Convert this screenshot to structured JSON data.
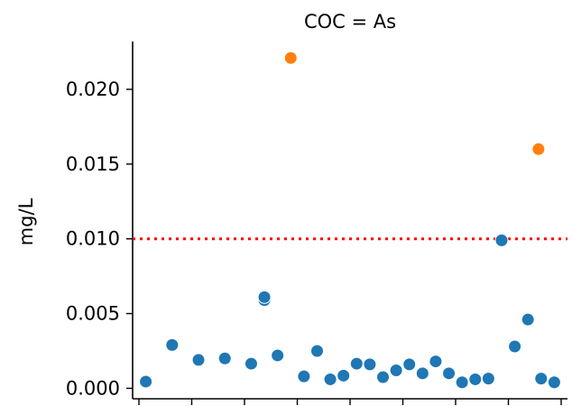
{
  "chart_data": {
    "type": "scatter",
    "title": "COC = As",
    "xlabel": "",
    "ylabel": "mg/L",
    "ylim": [
      -0.0007,
      0.0232
    ],
    "yticks": [
      "0.000",
      "0.005",
      "0.010",
      "0.015",
      "0.020"
    ],
    "ytick_values": [
      0.0,
      0.005,
      0.01,
      0.015,
      0.02
    ],
    "x_tick_count": 9,
    "xlim": [
      0,
      33
    ],
    "grid": false,
    "threshold": {
      "value": 0.01,
      "style": "dotted",
      "color": "#ff0000"
    },
    "colors": {
      "below": "#1f77b4",
      "above": "#ff7f0e",
      "threshold": "#ff0000"
    },
    "series": [
      {
        "color": "#1f77b4",
        "points": [
          {
            "x": 1,
            "y": 0.00045
          },
          {
            "x": 3,
            "y": 0.0029
          },
          {
            "x": 5,
            "y": 0.0019
          },
          {
            "x": 7,
            "y": 0.002
          },
          {
            "x": 9,
            "y": 0.00165
          },
          {
            "x": 10,
            "y": 0.0059
          },
          {
            "x": 10,
            "y": 0.0061
          },
          {
            "x": 11,
            "y": 0.0022
          },
          {
            "x": 13,
            "y": 0.0008
          },
          {
            "x": 14,
            "y": 0.0025
          },
          {
            "x": 15,
            "y": 0.0006
          },
          {
            "x": 16,
            "y": 0.00085
          },
          {
            "x": 17,
            "y": 0.00165
          },
          {
            "x": 18,
            "y": 0.0016
          },
          {
            "x": 19,
            "y": 0.00075
          },
          {
            "x": 20,
            "y": 0.0012
          },
          {
            "x": 21,
            "y": 0.0016
          },
          {
            "x": 22,
            "y": 0.001
          },
          {
            "x": 23,
            "y": 0.0018
          },
          {
            "x": 24,
            "y": 0.001
          },
          {
            "x": 25,
            "y": 0.0004
          },
          {
            "x": 26,
            "y": 0.0006
          },
          {
            "x": 27,
            "y": 0.00065
          },
          {
            "x": 28,
            "y": 0.0099
          },
          {
            "x": 29,
            "y": 0.0028
          },
          {
            "x": 30,
            "y": 0.0046
          },
          {
            "x": 31,
            "y": 0.00065
          },
          {
            "x": 32,
            "y": 0.0004
          }
        ]
      },
      {
        "color": "#ff7f0e",
        "points": [
          {
            "x": 12,
            "y": 0.0221
          },
          {
            "x": 30.8,
            "y": 0.016
          }
        ]
      }
    ]
  }
}
